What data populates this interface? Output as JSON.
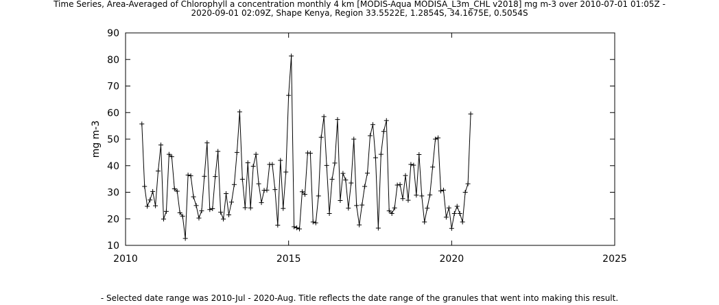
{
  "title_lines": [
    "Time Series, Area-Averaged of Chlorophyll a concentration monthly 4 km [MODIS-Aqua MODISA_L3m_CHL v2018] mg m-3 over 2010-07-01 01:05Z -",
    "2020-09-01 02:09Z, Shape Kenya, Region 33.5522E, 1.2854S, 34.1675E, 0.5054S"
  ],
  "footnote": "- Selected date range was 2010-Jul - 2020-Aug. Title reflects the date range of the granules that went into making this result.",
  "chart_data": {
    "type": "line",
    "title": "Time Series, Area-Averaged of Chlorophyll a concentration monthly 4 km [MODIS-Aqua MODISA_L3m_CHL v2018] mg m-3 over 2010-07-01 01:05Z - 2020-09-01 02:09Z, Shape Kenya, Region 33.5522E, 1.2854S, 34.1675E, 0.5054S",
    "xlabel": "",
    "ylabel": "mg m-3",
    "xlim": [
      2010,
      2025
    ],
    "ylim": [
      10,
      90
    ],
    "x_ticks": [
      "2010",
      "2015",
      "2020",
      "2025"
    ],
    "y_ticks": [
      "10",
      "20",
      "30",
      "40",
      "50",
      "60",
      "70",
      "80",
      "90"
    ],
    "grid": false,
    "legend": "none",
    "line_color": "#000000",
    "marker": "plus",
    "series": [
      {
        "x": [
          "2010-07",
          "2010-08",
          "2010-09",
          "2010-10",
          "2010-11",
          "2010-12",
          "2011-01",
          "2011-02",
          "2011-03",
          "2011-04",
          "2011-05",
          "2011-06",
          "2011-07",
          "2011-08",
          "2011-09",
          "2011-10",
          "2011-11",
          "2011-12",
          "2012-01",
          "2012-02",
          "2012-03",
          "2012-04",
          "2012-05",
          "2012-06",
          "2012-07",
          "2012-08",
          "2012-09",
          "2012-10",
          "2012-11",
          "2012-12",
          "2013-01",
          "2013-02",
          "2013-03",
          "2013-04",
          "2013-05",
          "2013-06",
          "2013-07",
          "2013-08",
          "2013-09",
          "2013-10",
          "2013-11",
          "2013-12",
          "2014-01",
          "2014-02",
          "2014-03",
          "2014-04",
          "2014-05",
          "2014-06",
          "2014-07",
          "2014-08",
          "2014-09",
          "2014-10",
          "2014-11",
          "2014-12",
          "2015-01",
          "2015-02",
          "2015-03",
          "2015-04",
          "2015-05",
          "2015-06",
          "2015-07",
          "2015-08",
          "2015-09",
          "2015-10",
          "2015-11",
          "2015-12",
          "2016-01",
          "2016-02",
          "2016-03",
          "2016-04",
          "2016-05",
          "2016-06",
          "2016-07",
          "2016-08",
          "2016-09",
          "2016-10",
          "2016-11",
          "2016-12",
          "2017-01",
          "2017-02",
          "2017-03",
          "2017-04",
          "2017-05",
          "2017-06",
          "2017-07",
          "2017-08",
          "2017-09",
          "2017-10",
          "2017-11",
          "2017-12",
          "2018-01",
          "2018-02",
          "2018-03",
          "2018-04",
          "2018-05",
          "2018-06",
          "2018-07",
          "2018-08",
          "2018-09",
          "2018-10",
          "2018-11",
          "2018-12",
          "2019-01",
          "2019-02",
          "2019-03",
          "2019-04",
          "2019-05",
          "2019-06",
          "2019-07",
          "2019-08",
          "2019-09",
          "2019-10",
          "2019-11",
          "2019-12",
          "2020-01",
          "2020-02",
          "2020-03",
          "2020-04",
          "2020-05",
          "2020-06",
          "2020-07",
          "2020-08"
        ],
        "values": [
          55.7,
          32.2,
          24.7,
          27.1,
          30.3,
          24.9,
          38.0,
          47.8,
          19.9,
          22.8,
          44.3,
          43.4,
          31.3,
          30.4,
          22.3,
          21.0,
          12.6,
          36.5,
          36.2,
          28.3,
          25.0,
          20.3,
          23.0,
          36.0,
          48.6,
          23.5,
          23.8,
          35.9,
          45.4,
          22.5,
          19.9,
          29.5,
          21.5,
          26.3,
          32.9,
          45.0,
          60.3,
          34.9,
          24.2,
          41.1,
          24.1,
          39.8,
          44.3,
          33.2,
          26.1,
          30.7,
          30.8,
          40.5,
          40.5,
          31.0,
          17.6,
          42.0,
          23.9,
          37.6,
          66.5,
          81.3,
          17.0,
          16.6,
          16.2,
          30.2,
          29.2,
          44.8,
          44.7,
          18.8,
          18.5,
          28.6,
          50.7,
          58.5,
          40.1,
          22.0,
          34.9,
          41.0,
          57.4,
          26.9,
          37.1,
          34.6,
          24.0,
          33.5,
          50.0,
          25.0,
          17.7,
          25.2,
          32.2,
          37.2,
          51.3,
          55.5,
          43.0,
          16.5,
          44.3,
          52.9,
          57.0,
          23.0,
          22.0,
          24.1,
          32.7,
          32.9,
          27.6,
          36.3,
          27.0,
          40.5,
          40.2,
          28.9,
          44.2,
          28.6,
          18.8,
          24.0,
          29.0,
          39.5,
          50.0,
          50.5,
          30.5,
          30.8,
          20.6,
          24.1,
          16.4,
          22.0,
          24.7,
          22.0,
          18.8,
          30.0,
          33.2,
          59.5
        ]
      }
    ]
  }
}
